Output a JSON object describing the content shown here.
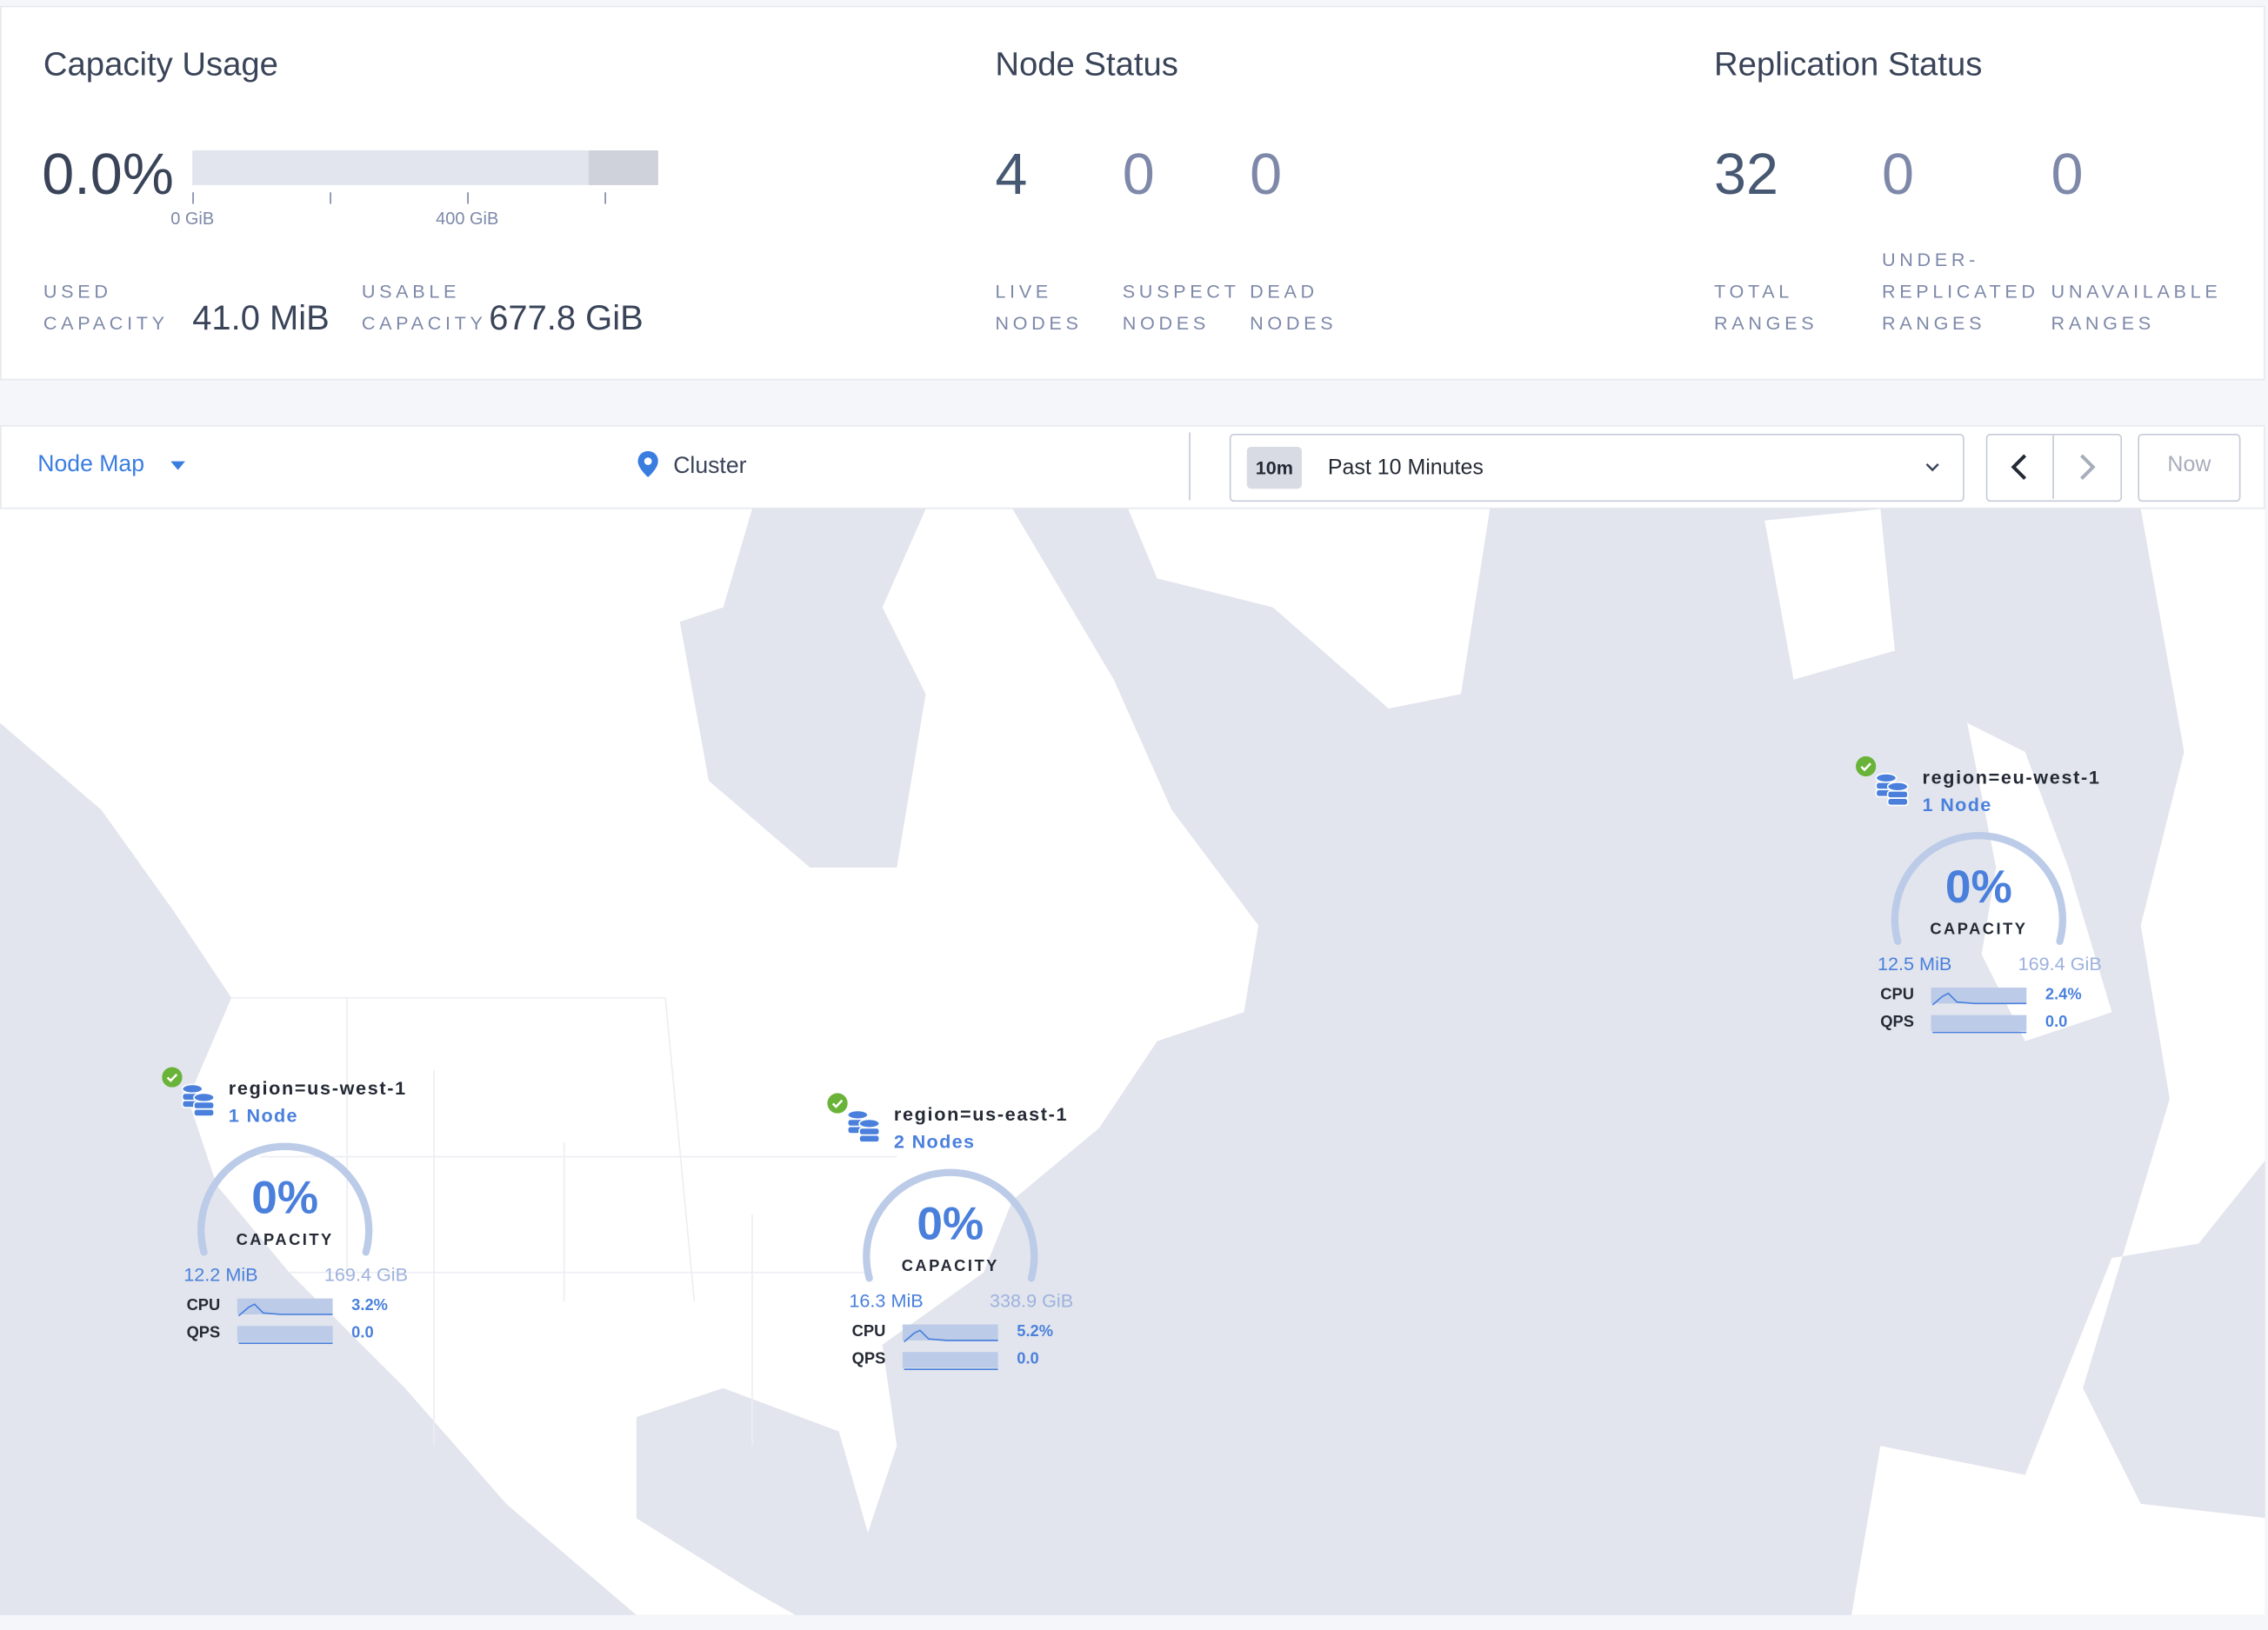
{
  "capacity": {
    "title": "Capacity Usage",
    "percent": "0.0%",
    "bar_used_fraction": 0.0,
    "tick_labels": [
      "0 GiB",
      "400 GiB"
    ],
    "used_label": [
      "USED",
      "CAPACITY"
    ],
    "used_value": "41.0 MiB",
    "usable_label": [
      "USABLE",
      "CAPACITY"
    ],
    "usable_value": "677.8 GiB"
  },
  "node_status": {
    "title": "Node Status",
    "stats": [
      {
        "value": "4",
        "label": [
          "LIVE",
          "NODES"
        ]
      },
      {
        "value": "0",
        "label": [
          "SUSPECT",
          "NODES"
        ]
      },
      {
        "value": "0",
        "label": [
          "DEAD",
          "NODES"
        ]
      }
    ]
  },
  "replication": {
    "title": "Replication Status",
    "stats": [
      {
        "value": "32",
        "label": [
          "",
          "TOTAL",
          "RANGES"
        ]
      },
      {
        "value": "0",
        "label": [
          "UNDER-",
          "REPLICATED",
          "RANGES"
        ]
      },
      {
        "value": "0",
        "label": [
          "",
          "UNAVAILABLE",
          "RANGES"
        ]
      }
    ]
  },
  "toolbar": {
    "view_label": "Node Map",
    "breadcrumb": "Cluster",
    "time_badge": "10m",
    "time_label": "Past 10 Minutes",
    "now_label": "Now"
  },
  "colors": {
    "accent": "#4a80dc",
    "live": "#6ab339",
    "land": "#ffffff",
    "water": "#e2e5ed"
  },
  "regions": [
    {
      "name": "region=us-west-1",
      "nodes": "1 Node",
      "percent": "0%",
      "capacity_label": "CAPACITY",
      "used": "12.2 MiB",
      "total": "169.4 GiB",
      "cpu_label": "CPU",
      "cpu": "3.2%",
      "qps_label": "QPS",
      "qps": "0.0"
    },
    {
      "name": "region=us-east-1",
      "nodes": "2 Nodes",
      "percent": "0%",
      "capacity_label": "CAPACITY",
      "used": "16.3 MiB",
      "total": "338.9 GiB",
      "cpu_label": "CPU",
      "cpu": "5.2%",
      "qps_label": "QPS",
      "qps": "0.0"
    },
    {
      "name": "region=eu-west-1",
      "nodes": "1 Node",
      "percent": "0%",
      "capacity_label": "CAPACITY",
      "used": "12.5 MiB",
      "total": "169.4 GiB",
      "cpu_label": "CPU",
      "cpu": "2.4%",
      "qps_label": "QPS",
      "qps": "0.0"
    }
  ]
}
